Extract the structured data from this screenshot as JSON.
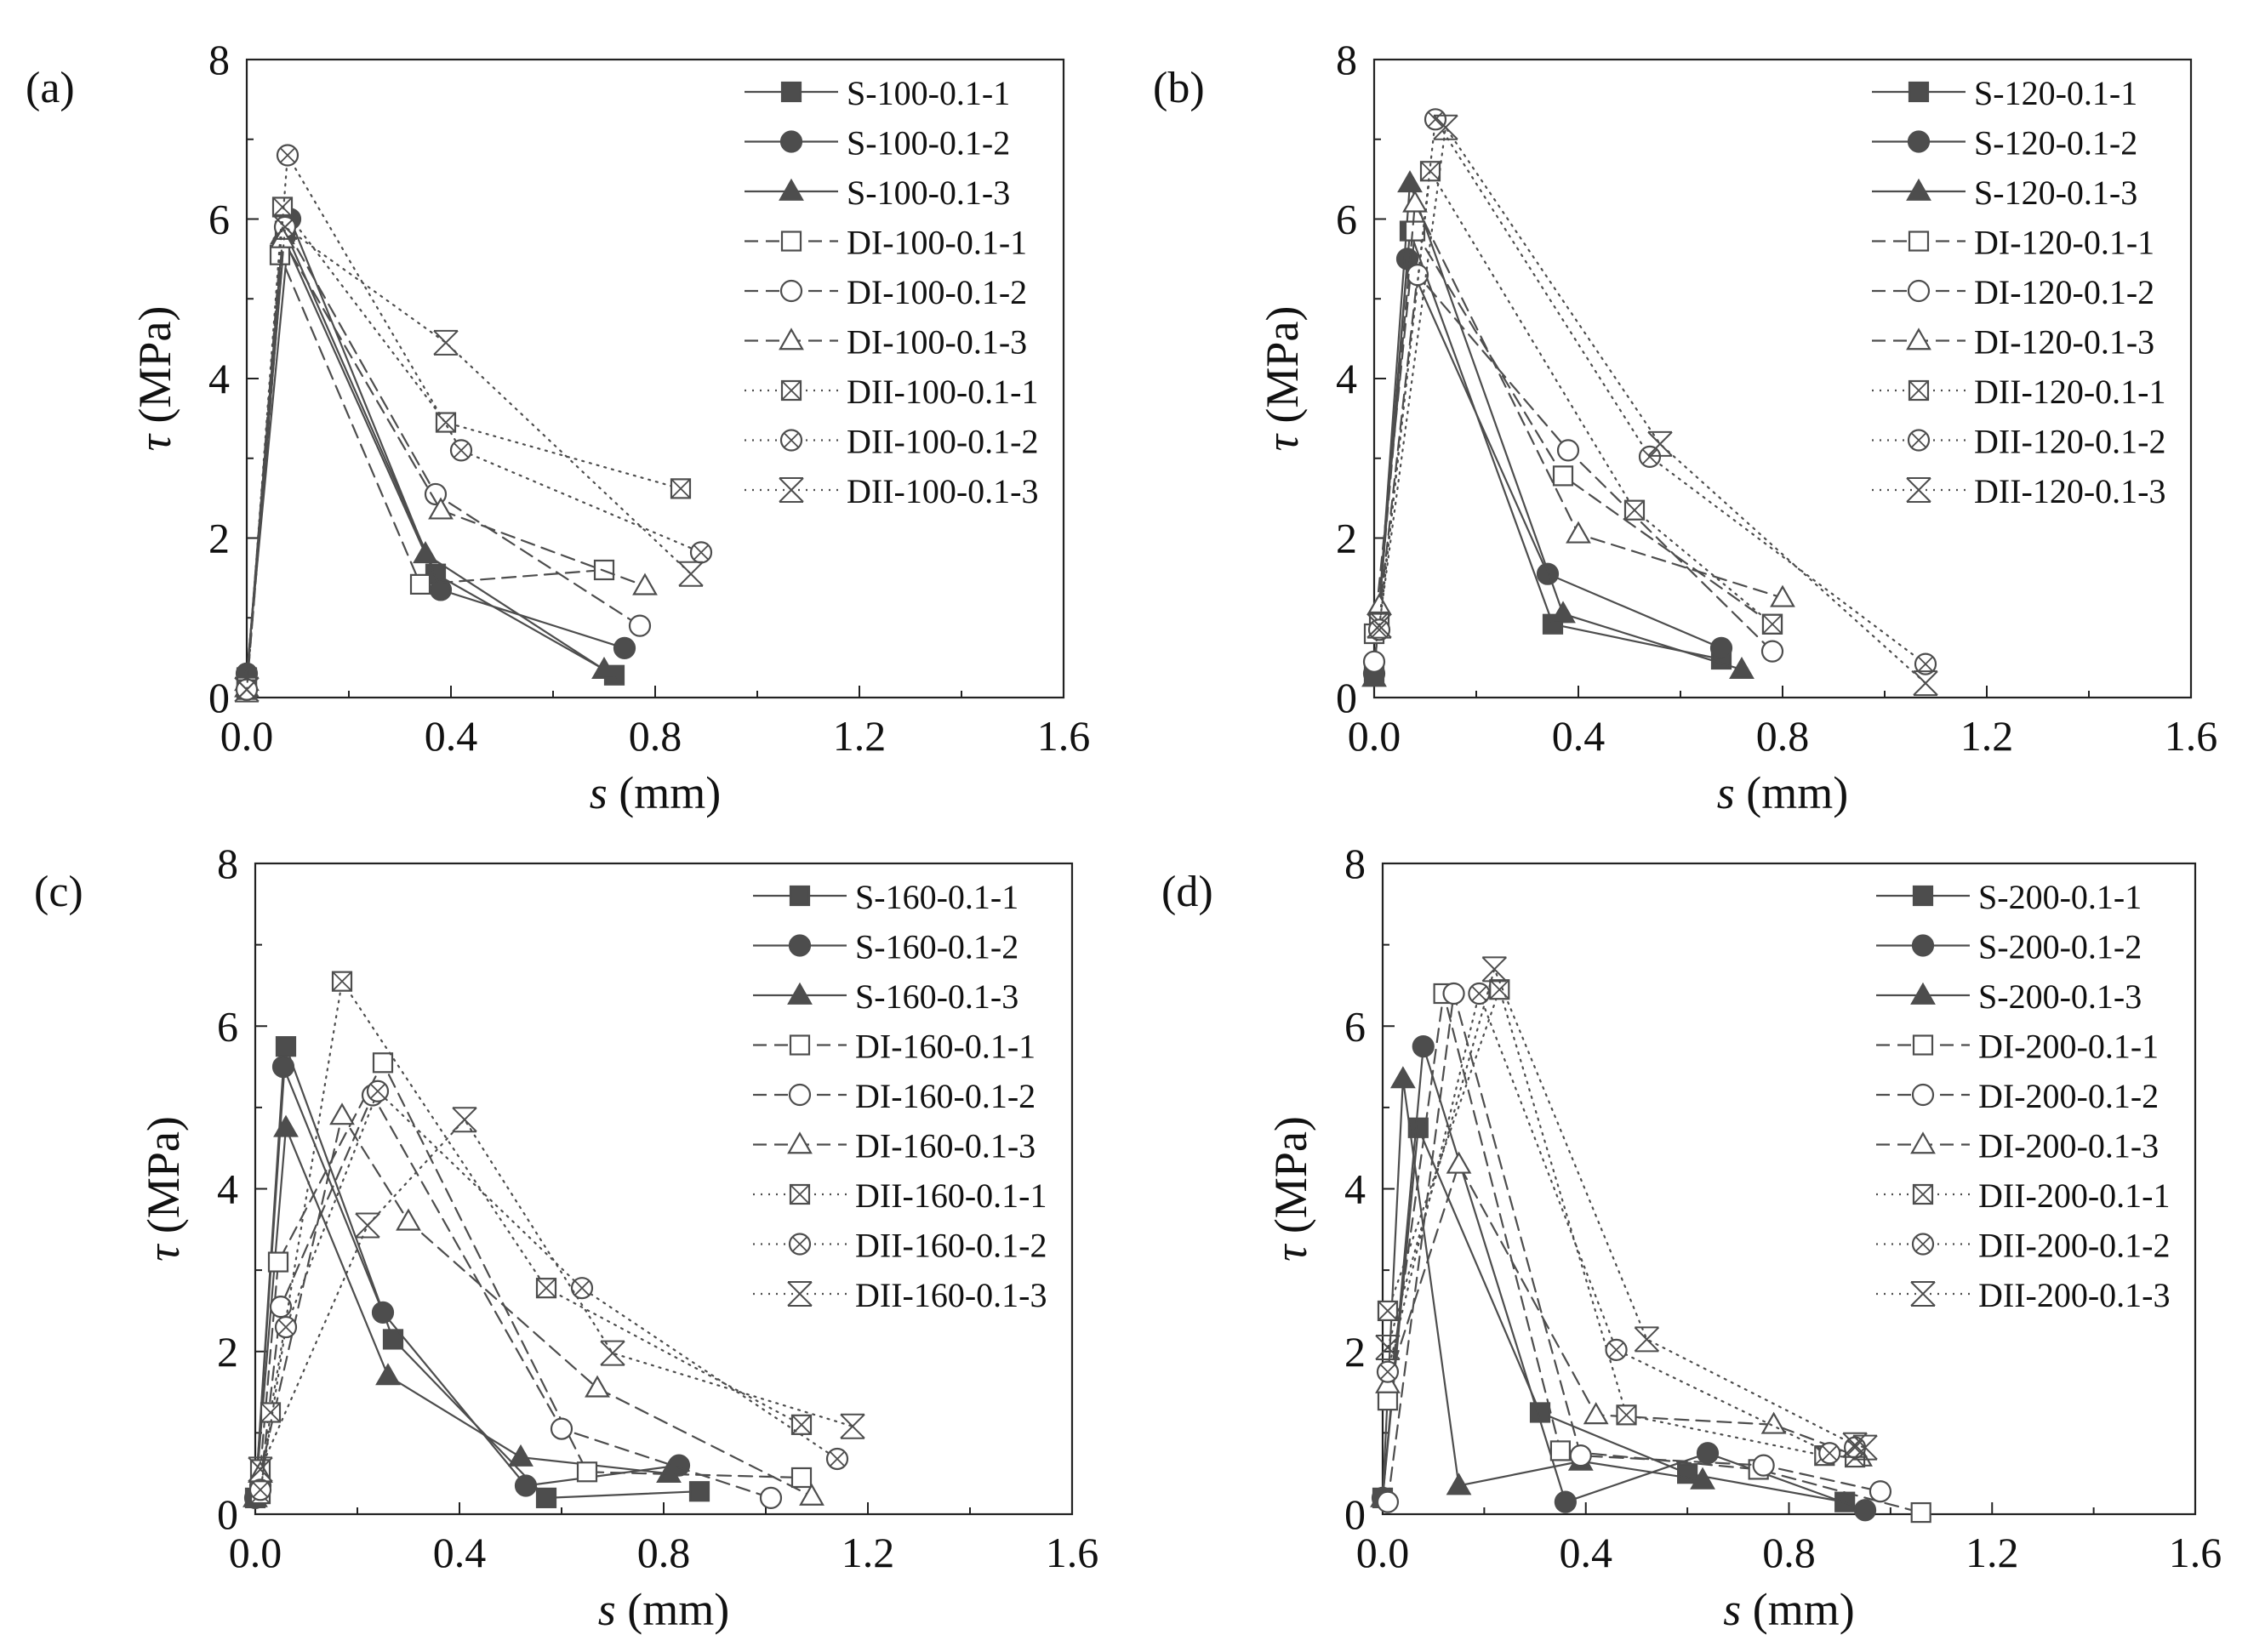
{
  "chart_data": [
    {
      "type": "line",
      "panel_label": "(a)",
      "xlabel_var": "s",
      "xlabel_unit": " (mm)",
      "ylabel_var": "τ",
      "ylabel_unit": " (MPa)",
      "xlim": [
        0,
        1.6
      ],
      "ylim": [
        0,
        8
      ],
      "xticks": [
        "0.0",
        "0.4",
        "0.8",
        "1.2",
        "1.6"
      ],
      "yticks": [
        "0",
        "2",
        "4",
        "6",
        "8"
      ],
      "legend_position": "top-right",
      "series": [
        {
          "name": "S-100-0.1-1",
          "style": "solid",
          "marker": "square-filled",
          "x": [
            0,
            0.075,
            0.37,
            0.72
          ],
          "y": [
            0.25,
            5.85,
            1.55,
            0.28
          ]
        },
        {
          "name": "S-100-0.1-2",
          "style": "solid",
          "marker": "circle-filled",
          "x": [
            0,
            0.085,
            0.38,
            0.74
          ],
          "y": [
            0.3,
            6.0,
            1.35,
            0.62
          ]
        },
        {
          "name": "S-100-0.1-3",
          "style": "solid",
          "marker": "triangle-filled",
          "x": [
            0,
            0.07,
            0.35,
            0.7
          ],
          "y": [
            0.2,
            5.8,
            1.8,
            0.35
          ]
        },
        {
          "name": "DI-100-0.1-1",
          "style": "dashed",
          "marker": "square-open",
          "x": [
            0,
            0.065,
            0.34,
            0.7
          ],
          "y": [
            0.15,
            5.55,
            1.42,
            1.6
          ]
        },
        {
          "name": "DI-100-0.1-2",
          "style": "dashed",
          "marker": "circle-open",
          "x": [
            0,
            0.075,
            0.37,
            0.77
          ],
          "y": [
            0.1,
            5.9,
            2.55,
            0.9
          ]
        },
        {
          "name": "DI-100-0.1-3",
          "style": "dashed",
          "marker": "triangle-open",
          "x": [
            0,
            0.07,
            0.38,
            0.78
          ],
          "y": [
            0.12,
            5.75,
            2.35,
            1.4
          ]
        },
        {
          "name": "DII-100-0.1-1",
          "style": "dotted",
          "marker": "square-x",
          "x": [
            0,
            0.07,
            0.39,
            0.85
          ],
          "y": [
            0.1,
            6.15,
            3.45,
            2.62
          ]
        },
        {
          "name": "DII-100-0.1-2",
          "style": "dotted",
          "marker": "circle-x",
          "x": [
            0,
            0.08,
            0.42,
            0.89
          ],
          "y": [
            0.1,
            6.8,
            3.1,
            1.82
          ]
        },
        {
          "name": "DII-100-0.1-3",
          "style": "dotted",
          "marker": "x-cross",
          "x": [
            0,
            0.075,
            0.39,
            0.87
          ],
          "y": [
            0.1,
            5.9,
            4.45,
            1.55
          ]
        }
      ]
    },
    {
      "type": "line",
      "panel_label": "(b)",
      "xlabel_var": "s",
      "xlabel_unit": " (mm)",
      "ylabel_var": "τ",
      "ylabel_unit": " (MPa)",
      "xlim": [
        0,
        1.6
      ],
      "ylim": [
        0,
        8
      ],
      "xticks": [
        "0.0",
        "0.4",
        "0.8",
        "1.2",
        "1.6"
      ],
      "yticks": [
        "0",
        "2",
        "4",
        "6",
        "8"
      ],
      "legend_position": "top-right",
      "series": [
        {
          "name": "S-120-0.1-1",
          "style": "solid",
          "marker": "square-filled",
          "x": [
            0,
            0.07,
            0.35,
            0.68
          ],
          "y": [
            0.3,
            5.85,
            0.92,
            0.48
          ]
        },
        {
          "name": "S-120-0.1-2",
          "style": "solid",
          "marker": "circle-filled",
          "x": [
            0,
            0.065,
            0.34,
            0.68
          ],
          "y": [
            0.3,
            5.5,
            1.55,
            0.62
          ]
        },
        {
          "name": "S-120-0.1-3",
          "style": "solid",
          "marker": "triangle-filled",
          "x": [
            0,
            0.07,
            0.37,
            0.72
          ],
          "y": [
            0.25,
            6.45,
            1.05,
            0.35
          ]
        },
        {
          "name": "DI-120-0.1-1",
          "style": "dashed",
          "marker": "square-open",
          "x": [
            0,
            0.08,
            0.37,
            0.78
          ],
          "y": [
            0.8,
            5.85,
            2.78,
            0.92
          ]
        },
        {
          "name": "DI-120-0.1-2",
          "style": "dashed",
          "marker": "circle-open",
          "x": [
            0,
            0.085,
            0.38,
            0.78
          ],
          "y": [
            0.45,
            5.3,
            3.1,
            0.58
          ]
        },
        {
          "name": "DI-120-0.1-3",
          "style": "dashed",
          "marker": "triangle-open",
          "x": [
            0.01,
            0.08,
            0.4,
            0.8
          ],
          "y": [
            1.15,
            6.2,
            2.05,
            1.25
          ]
        },
        {
          "name": "DII-120-0.1-1",
          "style": "dotted",
          "marker": "square-x",
          "x": [
            0.01,
            0.11,
            0.51,
            0.78
          ],
          "y": [
            0.95,
            6.6,
            2.35,
            0.92
          ]
        },
        {
          "name": "DII-120-0.1-2",
          "style": "dotted",
          "marker": "circle-x",
          "x": [
            0.01,
            0.12,
            0.54,
            1.08
          ],
          "y": [
            0.85,
            7.25,
            3.02,
            0.42
          ]
        },
        {
          "name": "DII-120-0.1-3",
          "style": "dotted",
          "marker": "x-cross",
          "x": [
            0.01,
            0.14,
            0.56,
            1.08
          ],
          "y": [
            0.9,
            7.15,
            3.18,
            0.18
          ]
        }
      ]
    },
    {
      "type": "line",
      "panel_label": "(c)",
      "xlabel_var": "s",
      "xlabel_unit": " (mm)",
      "ylabel_var": "τ",
      "ylabel_unit": " (MPa)",
      "xlim": [
        0,
        1.6
      ],
      "ylim": [
        0,
        8
      ],
      "xticks": [
        "0.0",
        "0.4",
        "0.8",
        "1.2",
        "1.6"
      ],
      "yticks": [
        "0",
        "2",
        "4",
        "6",
        "8"
      ],
      "legend_position": "top-right",
      "series": [
        {
          "name": "S-160-0.1-1",
          "style": "solid",
          "marker": "square-filled",
          "x": [
            0,
            0.06,
            0.27,
            0.57,
            0.87
          ],
          "y": [
            0.2,
            5.75,
            2.15,
            0.2,
            0.28
          ]
        },
        {
          "name": "S-160-0.1-2",
          "style": "solid",
          "marker": "circle-filled",
          "x": [
            0,
            0.055,
            0.25,
            0.53,
            0.83
          ],
          "y": [
            0.2,
            5.5,
            2.48,
            0.35,
            0.6
          ]
        },
        {
          "name": "S-160-0.1-3",
          "style": "solid",
          "marker": "triangle-filled",
          "x": [
            0,
            0.06,
            0.26,
            0.52,
            0.81
          ],
          "y": [
            0.2,
            4.75,
            1.7,
            0.7,
            0.5
          ]
        },
        {
          "name": "DI-160-0.1-1",
          "style": "dashed",
          "marker": "square-open",
          "x": [
            0.01,
            0.045,
            0.25,
            0.65,
            1.07
          ],
          "y": [
            0.55,
            3.1,
            5.55,
            0.52,
            0.45
          ]
        },
        {
          "name": "DI-160-0.1-2",
          "style": "dashed",
          "marker": "circle-open",
          "x": [
            0.01,
            0.05,
            0.23,
            0.6,
            1.01
          ],
          "y": [
            0.35,
            2.55,
            5.15,
            1.05,
            0.2
          ]
        },
        {
          "name": "DI-160-0.1-3",
          "style": "dashed",
          "marker": "triangle-open",
          "x": [
            0.01,
            0.17,
            0.3,
            0.67,
            1.09
          ],
          "y": [
            0.5,
            4.9,
            3.6,
            1.55,
            0.22
          ]
        },
        {
          "name": "DII-160-0.1-1",
          "style": "dotted",
          "marker": "square-x",
          "x": [
            0.01,
            0.03,
            0.17,
            0.57,
            1.07
          ],
          "y": [
            0.25,
            1.25,
            6.55,
            2.78,
            1.1
          ]
        },
        {
          "name": "DII-160-0.1-2",
          "style": "dotted",
          "marker": "circle-x",
          "x": [
            0.01,
            0.06,
            0.24,
            0.64,
            1.14
          ],
          "y": [
            0.3,
            2.3,
            5.2,
            2.78,
            0.68
          ]
        },
        {
          "name": "DII-160-0.1-3",
          "style": "dotted",
          "marker": "x-cross",
          "x": [
            0.01,
            0.22,
            0.41,
            0.7,
            1.17
          ],
          "y": [
            0.55,
            3.55,
            4.85,
            1.98,
            1.08
          ]
        }
      ]
    },
    {
      "type": "line",
      "panel_label": "(d)",
      "xlabel_var": "s",
      "xlabel_unit": " (mm)",
      "ylabel_var": "τ",
      "ylabel_unit": " (MPa)",
      "xlim": [
        0,
        1.6
      ],
      "ylim": [
        0,
        8
      ],
      "xticks": [
        "0.0",
        "0.4",
        "0.8",
        "1.2",
        "1.6"
      ],
      "yticks": [
        "0",
        "2",
        "4",
        "6",
        "8"
      ],
      "legend_position": "top-right",
      "series": [
        {
          "name": "S-200-0.1-1",
          "style": "solid",
          "marker": "square-filled",
          "x": [
            0,
            0.07,
            0.31,
            0.6,
            0.91
          ],
          "y": [
            0.2,
            4.75,
            1.25,
            0.5,
            0.15
          ]
        },
        {
          "name": "S-200-0.1-2",
          "style": "solid",
          "marker": "circle-filled",
          "x": [
            0,
            0.08,
            0.36,
            0.64,
            0.95
          ],
          "y": [
            0.2,
            5.75,
            0.15,
            0.75,
            0.05
          ]
        },
        {
          "name": "S-200-0.1-3",
          "style": "solid",
          "marker": "triangle-filled",
          "x": [
            0,
            0.04,
            0.15,
            0.39,
            0.63
          ],
          "y": [
            0.2,
            5.35,
            0.35,
            0.65,
            0.42
          ]
        },
        {
          "name": "DI-200-0.1-1",
          "style": "dashed",
          "marker": "square-open",
          "x": [
            0.01,
            0.12,
            0.35,
            0.74,
            1.06
          ],
          "y": [
            1.4,
            6.4,
            0.78,
            0.55,
            0.02
          ]
        },
        {
          "name": "DI-200-0.1-2",
          "style": "dashed",
          "marker": "circle-open",
          "x": [
            0.01,
            0.14,
            0.39,
            0.75,
            0.98
          ],
          "y": [
            0.15,
            6.4,
            0.72,
            0.6,
            0.28
          ]
        },
        {
          "name": "DI-200-0.1-3",
          "style": "dashed",
          "marker": "triangle-open",
          "x": [
            0.01,
            0.15,
            0.42,
            0.77,
            0.94
          ],
          "y": [
            1.6,
            4.3,
            1.22,
            1.1,
            0.7
          ]
        },
        {
          "name": "DII-200-0.1-1",
          "style": "dotted",
          "marker": "square-x",
          "x": [
            0.01,
            0.23,
            0.48,
            0.87,
            0.93
          ],
          "y": [
            2.5,
            6.45,
            1.22,
            0.72,
            0.7
          ]
        },
        {
          "name": "DII-200-0.1-2",
          "style": "dotted",
          "marker": "circle-x",
          "x": [
            0.01,
            0.19,
            0.46,
            0.88,
            0.93
          ],
          "y": [
            1.75,
            6.4,
            2.02,
            0.75,
            0.82
          ]
        },
        {
          "name": "DII-200-0.1-3",
          "style": "dotted",
          "marker": "x-cross",
          "x": [
            0.01,
            0.22,
            0.52,
            0.93,
            0.95
          ],
          "y": [
            2.05,
            6.7,
            2.15,
            0.85,
            0.82
          ]
        }
      ]
    }
  ]
}
